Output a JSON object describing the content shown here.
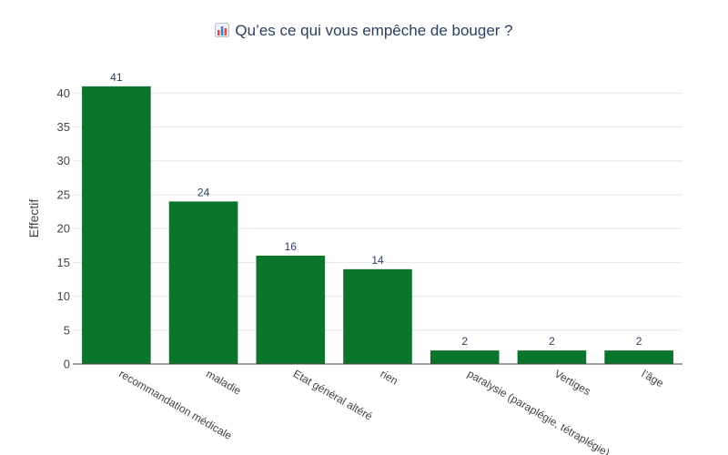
{
  "chart_data": {
    "type": "bar",
    "title": "Qu’es ce qui vous empêche de bouger ?",
    "title_icon": "bar-chart-icon",
    "xlabel": "",
    "ylabel": "Effectif",
    "categories": [
      "recommandation médicale",
      "maladie",
      "Etat général altéré",
      "rien",
      "paralysie (paraplégie, tétraplégie)",
      "Vertiges",
      "l’âge"
    ],
    "values": [
      41,
      24,
      16,
      14,
      2,
      2,
      2
    ],
    "ylim": [
      0,
      43
    ],
    "yticks": [
      0,
      5,
      10,
      15,
      20,
      25,
      30,
      35,
      40
    ],
    "grid": true,
    "legend": "none",
    "bar_color": "#0b752e"
  }
}
